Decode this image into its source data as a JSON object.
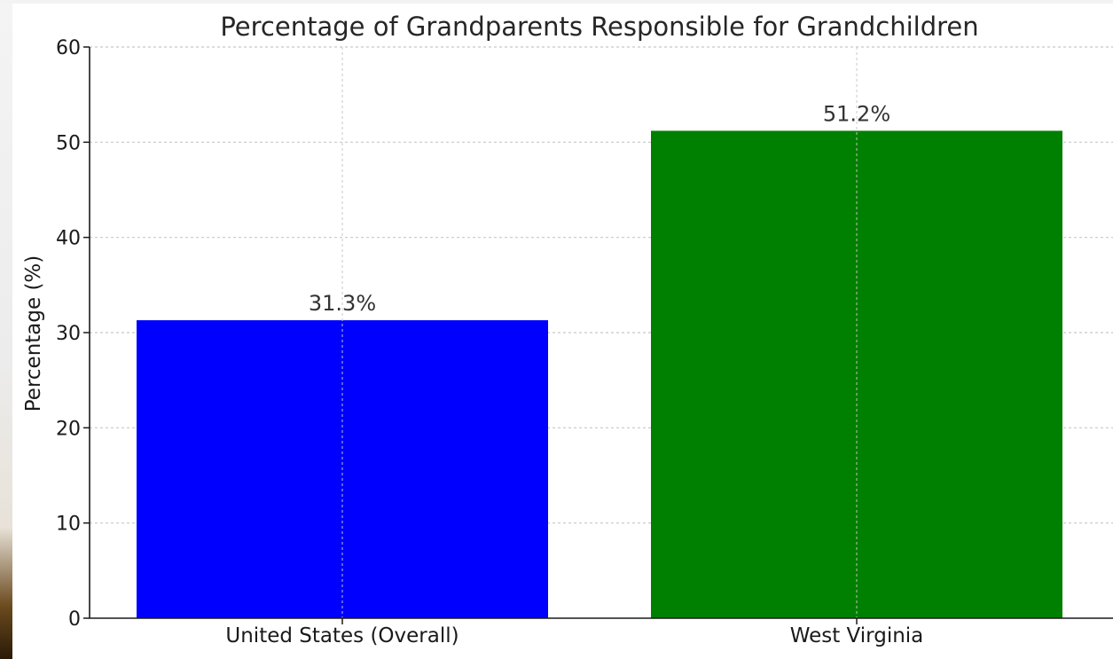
{
  "chart_data": {
    "type": "bar",
    "title": "Percentage of Grandparents Responsible for Grandchildren",
    "xlabel": "",
    "ylabel": "Percentage (%)",
    "categories": [
      "United States (Overall)",
      "West Virginia"
    ],
    "values": [
      31.3,
      51.2
    ],
    "value_labels": [
      "31.3%",
      "51.2%"
    ],
    "colors": [
      "#0000ff",
      "#008000"
    ],
    "ylim": [
      0,
      60
    ],
    "yticks": [
      0,
      10,
      20,
      30,
      40,
      50,
      60
    ],
    "ytick_labels": [
      "0",
      "10",
      "20",
      "30",
      "40",
      "50",
      "60"
    ],
    "grid": true
  }
}
